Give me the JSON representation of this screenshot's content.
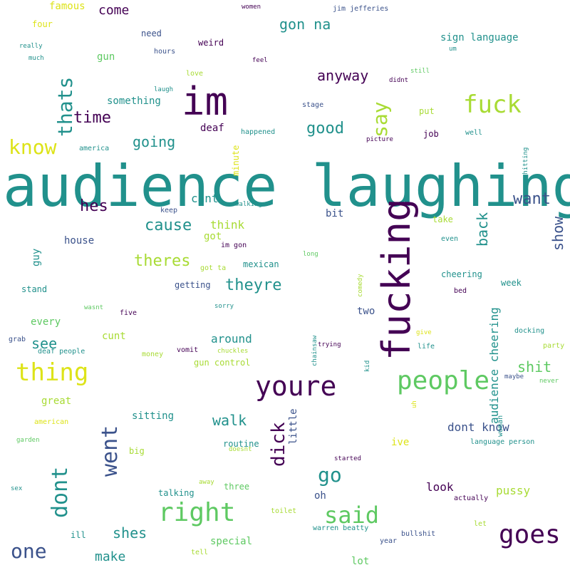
{
  "palette": {
    "deep_purple": "#440154",
    "indigo": "#3b528b",
    "teal": "#21918c",
    "green": "#5ec962",
    "yellow_green": "#a8db34",
    "yellow": "#dde318"
  },
  "words": [
    "audience laughing",
    "fucking",
    "im",
    "youre",
    "people",
    "fuck",
    "goes",
    "right",
    "thing",
    "said",
    "dont",
    "went",
    "thats",
    "know",
    "say",
    "one",
    "go",
    "dick",
    "time",
    "good",
    "cause",
    "hes",
    "theres",
    "theyre",
    "want",
    "going",
    "gon na",
    "anyway",
    "see",
    "walk",
    "shit",
    "shes",
    "back",
    "show",
    "come",
    "audience cheering",
    "dont know",
    "look",
    "pussy",
    "make",
    "around",
    "cant",
    "think",
    "little",
    "great",
    "every",
    "special",
    "two",
    "got",
    "cunt",
    "famous",
    "guy",
    "weird",
    "sign language",
    "oh",
    "lot",
    "bit",
    "something",
    "minute",
    "sitting",
    "deaf",
    "job",
    "four",
    "need",
    "gun",
    "house",
    "routine",
    "ive",
    "jim jefferies",
    "put",
    "stand",
    "mexican",
    "getting",
    "three",
    "week",
    "cheering",
    "big",
    "talking",
    "take",
    "bullshit",
    "hours",
    "america",
    "keep",
    "happened",
    "stage",
    "love",
    "gun control",
    "deaf people",
    "money",
    "five",
    "vomit",
    "ill",
    "im gon",
    "woman",
    "language person",
    "life",
    "wasnt",
    "grab",
    "actually",
    "year",
    "tell",
    "even",
    "started",
    "doesnt",
    "sorry",
    "women",
    "feel",
    "didnt",
    "still",
    "picture",
    "well",
    "shitting",
    "walking",
    "got ta",
    "long",
    "comedy",
    "chainsaw",
    "kid",
    "uh",
    "give",
    "trying",
    "toilet",
    "party",
    "never",
    "maybe",
    "docking",
    "bed",
    "really",
    "much",
    "um",
    "laugh",
    "chuckles",
    "american",
    "garden",
    "sex",
    "away",
    "warren beatty",
    "let"
  ]
}
